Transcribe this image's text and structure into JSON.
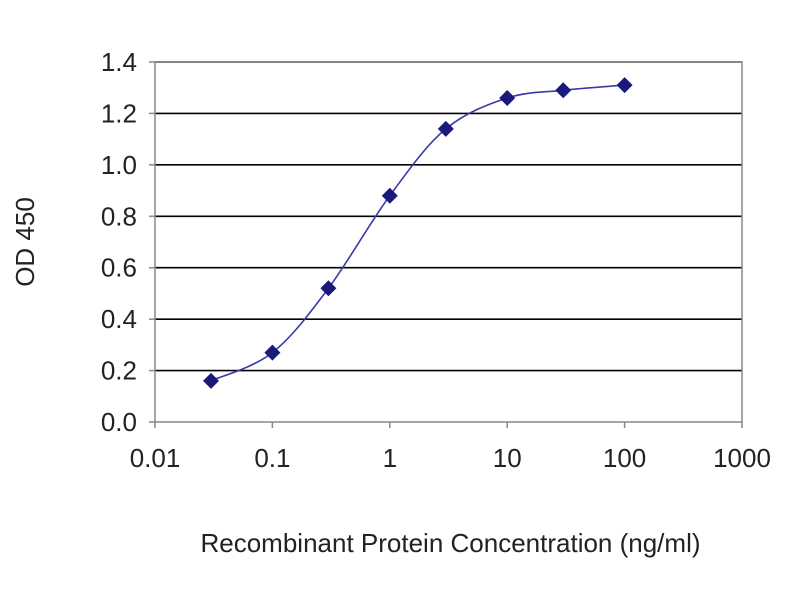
{
  "chart_data": {
    "type": "line",
    "xlabel": "Recombinant Protein Concentration (ng/ml)",
    "ylabel": "OD 450",
    "x_scale": "log",
    "xlim": [
      0.01,
      1000
    ],
    "ylim": [
      0.0,
      1.4
    ],
    "x_ticks": [
      "0.01",
      "0.1",
      "1",
      "10",
      "100",
      "1000"
    ],
    "y_ticks": [
      "0.0",
      "0.2",
      "0.4",
      "0.6",
      "0.8",
      "1.0",
      "1.2",
      "1.4"
    ],
    "grid": "horizontal",
    "series": [
      {
        "x": [
          0.03,
          0.1,
          0.3,
          1,
          3,
          10,
          30,
          100
        ],
        "y": [
          0.16,
          0.27,
          0.52,
          0.88,
          1.14,
          1.26,
          1.29,
          1.31
        ]
      }
    ],
    "colors": {
      "line": "#3a3aa8",
      "marker": "#1a1a7a",
      "grid": "#000000",
      "plot_border": "#888888"
    }
  }
}
